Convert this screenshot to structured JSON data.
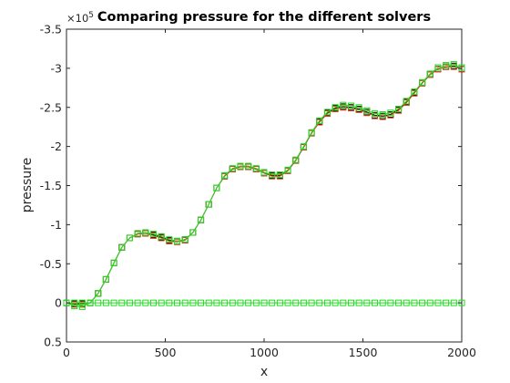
{
  "chart_data": {
    "type": "line",
    "title": "Comparing pressure for the different solvers",
    "xlabel": "x",
    "ylabel": "pressure",
    "xlim": [
      0,
      2000
    ],
    "ylim": [
      -3.5,
      0.5
    ],
    "y_reversed": true,
    "y_exponent_label": "×10",
    "y_exponent_power": "5",
    "grid": false,
    "legend": "none",
    "x_ticks": [
      0,
      500,
      1000,
      1500,
      2000
    ],
    "y_ticks": [
      -3.5,
      -3,
      -2.5,
      -2,
      -1.5,
      -1,
      -0.5,
      0,
      0.5
    ],
    "x_tick_labels": [
      "0",
      "500",
      "1000",
      "1500",
      "2000"
    ],
    "y_tick_labels": [
      "-3.5",
      "-3",
      "-2.5",
      "-2",
      "-1.5",
      "-1",
      "-0.5",
      "0",
      "0.5"
    ],
    "x": [
      0,
      40,
      80,
      120,
      160,
      200,
      240,
      280,
      320,
      360,
      400,
      440,
      480,
      520,
      560,
      600,
      640,
      680,
      720,
      760,
      800,
      840,
      880,
      920,
      960,
      1000,
      1040,
      1080,
      1120,
      1160,
      1200,
      1240,
      1280,
      1320,
      1360,
      1400,
      1440,
      1480,
      1520,
      1560,
      1600,
      1640,
      1680,
      1720,
      1760,
      1800,
      1840,
      1880,
      1920,
      1960,
      2000
    ],
    "series": [
      {
        "color": "#000000",
        "marker": "square",
        "values": [
          0,
          0.01,
          0.01,
          0,
          -0.12,
          -0.3,
          -0.51,
          -0.71,
          -0.83,
          -0.88,
          -0.89,
          -0.87,
          -0.84,
          -0.8,
          -0.79,
          -0.81,
          -0.9,
          -1.06,
          -1.26,
          -1.47,
          -1.62,
          -1.71,
          -1.74,
          -1.74,
          -1.71,
          -1.66,
          -1.63,
          -1.63,
          -1.69,
          -1.82,
          -1.99,
          -2.17,
          -2.32,
          -2.43,
          -2.49,
          -2.51,
          -2.5,
          -2.48,
          -2.44,
          -2.4,
          -2.39,
          -2.41,
          -2.47,
          -2.57,
          -2.69,
          -2.81,
          -2.92,
          -2.99,
          -3.02,
          -3.03,
          -2.99
        ]
      },
      {
        "color": "#d93b1b",
        "marker": "square",
        "values": [
          0,
          0.02,
          0.02,
          0,
          -0.12,
          -0.3,
          -0.51,
          -0.71,
          -0.83,
          -0.88,
          -0.89,
          -0.86,
          -0.83,
          -0.79,
          -0.78,
          -0.8,
          -0.9,
          -1.06,
          -1.26,
          -1.47,
          -1.62,
          -1.71,
          -1.74,
          -1.74,
          -1.71,
          -1.66,
          -1.62,
          -1.62,
          -1.69,
          -1.82,
          -1.99,
          -2.17,
          -2.31,
          -2.42,
          -2.48,
          -2.5,
          -2.49,
          -2.47,
          -2.43,
          -2.39,
          -2.38,
          -2.4,
          -2.46,
          -2.56,
          -2.68,
          -2.81,
          -2.92,
          -2.99,
          -3.02,
          -3.02,
          -2.99
        ]
      },
      {
        "color": "#22dd22",
        "marker": "square",
        "values": [
          0,
          0.04,
          0.05,
          0,
          -0.12,
          -0.3,
          -0.51,
          -0.71,
          -0.83,
          -0.89,
          -0.9,
          -0.88,
          -0.85,
          -0.81,
          -0.79,
          -0.81,
          -0.9,
          -1.06,
          -1.26,
          -1.47,
          -1.63,
          -1.72,
          -1.75,
          -1.75,
          -1.72,
          -1.67,
          -1.64,
          -1.64,
          -1.7,
          -1.83,
          -2,
          -2.18,
          -2.33,
          -2.44,
          -2.5,
          -2.53,
          -2.52,
          -2.5,
          -2.46,
          -2.42,
          -2.41,
          -2.43,
          -2.48,
          -2.58,
          -2.7,
          -2.82,
          -2.93,
          -3.01,
          -3.04,
          -3.05,
          -3.01
        ]
      },
      {
        "color": "#22dd22",
        "marker": "square",
        "values": [
          0,
          0,
          0,
          0,
          0,
          0,
          0,
          0,
          0,
          0,
          0,
          0,
          0,
          0,
          0,
          0,
          0,
          0,
          0,
          0,
          0,
          0,
          0,
          0,
          0,
          0,
          0,
          0,
          0,
          0,
          0,
          0,
          0,
          0,
          0,
          0,
          0,
          0,
          0,
          0,
          0,
          0,
          0,
          0,
          0,
          0,
          0,
          0,
          0,
          0,
          0
        ]
      }
    ]
  }
}
